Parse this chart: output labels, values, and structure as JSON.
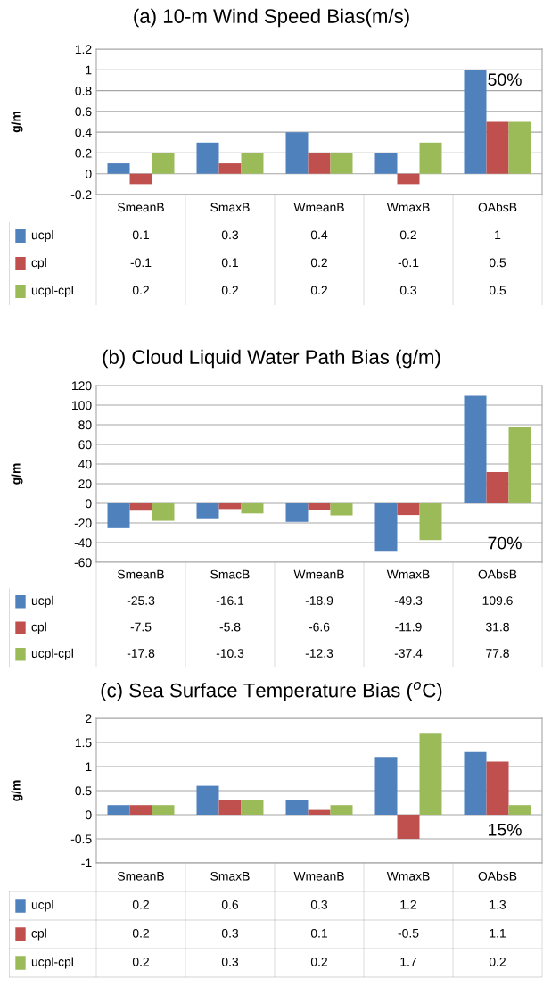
{
  "chart_data": [
    {
      "type": "bar",
      "title": "(a) 10-m Wind Speed Bias(m/s)",
      "ylabel": "g/m",
      "categories": [
        "SmeanB",
        "SmaxB",
        "WmeanB",
        "WmaxB",
        "OAbsB"
      ],
      "series": [
        {
          "name": "ucpl",
          "color": "#4f81bd",
          "values": [
            0.1,
            0.3,
            0.4,
            0.2,
            1
          ]
        },
        {
          "name": "cpl",
          "color": "#c0504d",
          "values": [
            -0.1,
            0.1,
            0.2,
            -0.1,
            0.5
          ]
        },
        {
          "name": "ucpl-cpl",
          "color": "#9bbb59",
          "values": [
            0.2,
            0.2,
            0.2,
            0.3,
            0.5
          ]
        }
      ],
      "ylim": [
        -0.2,
        1.2
      ],
      "yticks": [
        -0.2,
        0,
        0.2,
        0.4,
        0.6,
        0.8,
        1,
        1.2
      ],
      "grid": "y",
      "data_labels": true,
      "legend": "bottom left",
      "annotations": [
        "50%"
      ]
    },
    {
      "type": "bar",
      "title": "(b) Cloud Liquid Water Path Bias (g/m)",
      "ylabel": "g/m",
      "categories": [
        "SmeanB",
        "SmacB",
        "WmeanB",
        "WmaxB",
        "OAbsB"
      ],
      "series": [
        {
          "name": "ucpl",
          "color": "#4f81bd",
          "values": [
            -25.3,
            -16.1,
            -18.9,
            -49.3,
            109.6
          ]
        },
        {
          "name": "cpl",
          "color": "#c0504d",
          "values": [
            -7.5,
            -5.8,
            -6.6,
            -11.9,
            31.8
          ]
        },
        {
          "name": "ucpl-cpl",
          "color": "#9bbb59",
          "values": [
            -17.8,
            -10.3,
            -12.3,
            -37.4,
            77.8
          ]
        }
      ],
      "ylim": [
        -60,
        120
      ],
      "yticks": [
        -60,
        -40,
        -20,
        0,
        20,
        40,
        60,
        80,
        100,
        120
      ],
      "grid": "y",
      "data_labels": true,
      "legend": "bottom left",
      "annotations": [
        "70%"
      ]
    },
    {
      "type": "bar",
      "title": "(c) Sea Surface Temperature Bias ($^{o}$C)",
      "ylabel": "g/m",
      "categories": [
        "SmeanB",
        "SmaxB",
        "WmeanB",
        "WmaxB",
        "OAbsB"
      ],
      "series": [
        {
          "name": "ucpl",
          "color": "#4f81bd",
          "values": [
            0.2,
            0.6,
            0.3,
            1.2,
            1.3
          ]
        },
        {
          "name": "cpl",
          "color": "#c0504d",
          "values": [
            0.2,
            0.3,
            0.1,
            -0.5,
            1.1
          ]
        },
        {
          "name": "ucpl-cpl",
          "color": "#9bbb59",
          "values": [
            0.2,
            0.3,
            0.2,
            1.7,
            0.2
          ]
        }
      ],
      "ylim": [
        -1,
        2
      ],
      "yticks": [
        -1,
        -0.5,
        0,
        0.5,
        1,
        1.5,
        2
      ],
      "grid": "y",
      "data_labels": true,
      "legend": "bottom left",
      "annotations": [
        "15%"
      ]
    }
  ]
}
